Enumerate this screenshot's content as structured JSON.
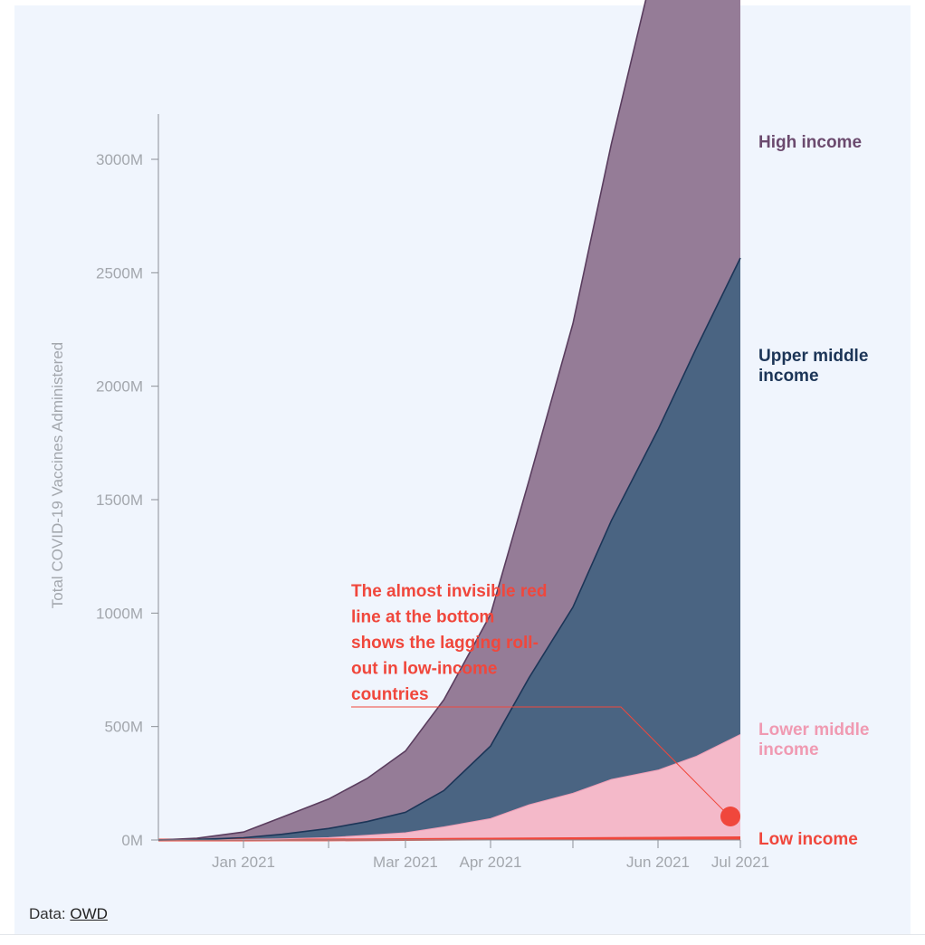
{
  "source": {
    "prefix": "Data:",
    "link": "OWD"
  },
  "chart_data": {
    "type": "area",
    "stacked": true,
    "title": "",
    "xlabel": "",
    "ylabel": "Total COVID-19 Vaccines Administered",
    "ylim": [
      0,
      3200
    ],
    "xlim": [
      "2020-12-01",
      "2021-07-01"
    ],
    "y_ticks": [
      0,
      500,
      1000,
      1500,
      2000,
      2500,
      3000
    ],
    "y_tick_labels": [
      "0M",
      "500M",
      "1000M",
      "1500M",
      "2000M",
      "2500M",
      "3000M"
    ],
    "x_ticks": [
      "2021-01-01",
      "2021-03-01",
      "2021-04-01",
      "2021-06-01",
      "2021-07-01"
    ],
    "x_tick_labels": [
      "Jan 2021",
      "Mar 2021",
      "Apr 2021",
      "Jun 2021",
      "Jul 2021"
    ],
    "grid": false,
    "x": [
      "2020-12-01",
      "2020-12-15",
      "2021-01-01",
      "2021-01-15",
      "2021-02-01",
      "2021-02-15",
      "2021-03-01",
      "2021-03-15",
      "2021-04-01",
      "2021-04-15",
      "2021-05-01",
      "2021-05-15",
      "2021-06-01",
      "2021-06-15",
      "2021-07-01"
    ],
    "series": [
      {
        "name": "Low income",
        "color": "#f0473c",
        "label_lines": [
          "Low income"
        ],
        "values": [
          0,
          0,
          0,
          0.2,
          0.5,
          1,
          2,
          3,
          4,
          5,
          6,
          7,
          8,
          9,
          10
        ]
      },
      {
        "name": "Lower middle income",
        "color": "#f4b9c9",
        "label_color": "#f09ab2",
        "label_lines": [
          "Lower middle",
          "income"
        ],
        "values": [
          0,
          0.5,
          2,
          5,
          10,
          20,
          30,
          55,
          90,
          150,
          200,
          260,
          300,
          360,
          455
        ]
      },
      {
        "name": "Upper middle income",
        "color": "#4a6482",
        "label_color": "#1c3557",
        "label_lines": [
          "Upper middle",
          "income"
        ],
        "values": [
          0,
          2,
          8,
          20,
          40,
          60,
          90,
          160,
          320,
          560,
          820,
          1140,
          1500,
          1800,
          2100
        ]
      },
      {
        "name": "High income",
        "color": "#957c97",
        "label_color": "#6b4a6e",
        "label_lines": [
          "High income"
        ],
        "values": [
          0,
          5,
          25,
          75,
          130,
          190,
          270,
          400,
          580,
          870,
          1250,
          1660,
          2120,
          2560,
          3080
        ]
      }
    ],
    "annotation": {
      "lines": [
        "The almost invisible red",
        "line at the bottom",
        "shows the lagging roll-",
        "out in low-income",
        "countries"
      ],
      "color": "#f0473c"
    }
  }
}
